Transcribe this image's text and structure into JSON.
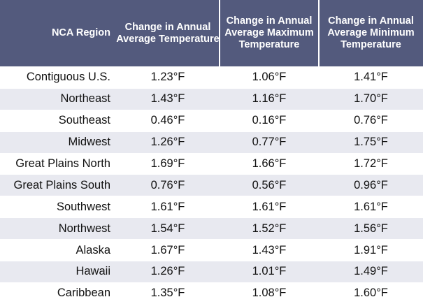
{
  "headers": [
    "NCA Region",
    "Change in Annual Average Temperature",
    "Change in Annual Average Maximum Temperature",
    "Change in Annual Average Minimum Temperature"
  ],
  "rows": [
    {
      "region": "Contiguous U.S.",
      "avg": "1.23°F",
      "max": "1.06°F",
      "min": "1.41°F"
    },
    {
      "region": "Northeast",
      "avg": "1.43°F",
      "max": "1.16°F",
      "min": "1.70°F"
    },
    {
      "region": "Southeast",
      "avg": "0.46°F",
      "max": "0.16°F",
      "min": "0.76°F"
    },
    {
      "region": "Midwest",
      "avg": "1.26°F",
      "max": "0.77°F",
      "min": "1.75°F"
    },
    {
      "region": "Great Plains North",
      "avg": "1.69°F",
      "max": "1.66°F",
      "min": "1.72°F"
    },
    {
      "region": "Great Plains South",
      "avg": "0.76°F",
      "max": "0.56°F",
      "min": "0.96°F"
    },
    {
      "region": "Southwest",
      "avg": "1.61°F",
      "max": "1.61°F",
      "min": "1.61°F"
    },
    {
      "region": "Northwest",
      "avg": "1.54°F",
      "max": "1.52°F",
      "min": "1.56°F"
    },
    {
      "region": "Alaska",
      "avg": "1.67°F",
      "max": "1.43°F",
      "min": "1.91°F"
    },
    {
      "region": "Hawaii",
      "avg": "1.26°F",
      "max": "1.01°F",
      "min": "1.49°F"
    },
    {
      "region": "Caribbean",
      "avg": "1.35°F",
      "max": "1.08°F",
      "min": "1.60°F"
    }
  ],
  "colors": {
    "header_bg": "#535a7d",
    "header_text": "#ffffff",
    "stripe": "#e8e9f0"
  }
}
